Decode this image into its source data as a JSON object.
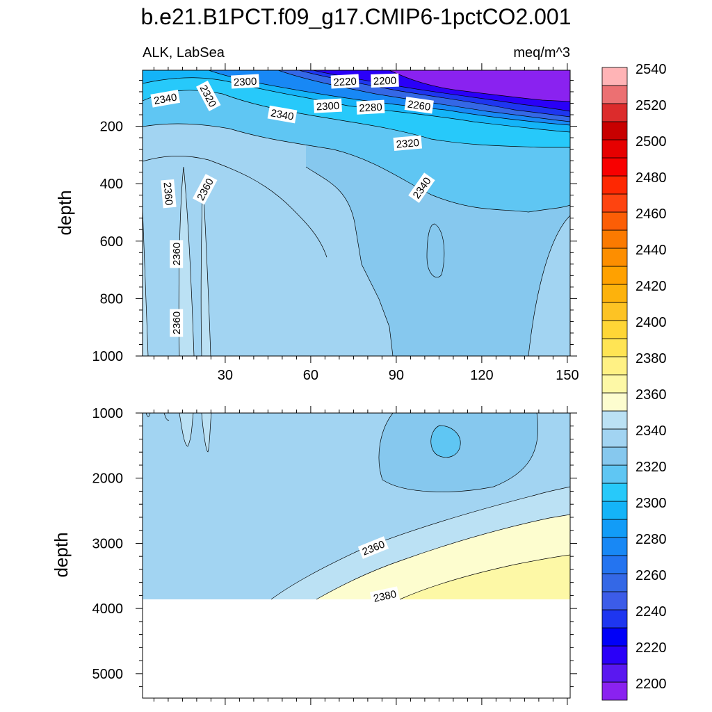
{
  "title": "b.e21.B1PCT.f09_g17.CMIP6-1pctCO2.001",
  "left_subtitle": "ALK, LabSea",
  "right_subtitle": "meq/m^3",
  "chart_data": [
    {
      "type": "heatmap",
      "panel": "upper",
      "variable": "ALK",
      "region": "LabSea",
      "units": "meq/m^3",
      "ylabel": "depth",
      "xlabel": "",
      "xlim": [
        1,
        151
      ],
      "ylim": [
        1000,
        5
      ],
      "y_reversed": true,
      "x_ticks": [
        "30",
        "60",
        "90",
        "120",
        "150"
      ],
      "y_ticks": [
        "200",
        "400",
        "600",
        "800",
        "1000"
      ],
      "contour_labels": [
        {
          "value": "2300",
          "x": 37,
          "y": 45
        },
        {
          "value": "2220",
          "x": 72,
          "y": 45
        },
        {
          "value": "2200",
          "x": 86,
          "y": 42
        },
        {
          "value": "2340",
          "x": 9,
          "y": 105
        },
        {
          "value": "2320",
          "x": 24,
          "y": 95
        },
        {
          "value": "2340",
          "x": 50,
          "y": 160
        },
        {
          "value": "2300",
          "x": 66,
          "y": 130
        },
        {
          "value": "2280",
          "x": 81,
          "y": 135
        },
        {
          "value": "2260",
          "x": 98,
          "y": 128
        },
        {
          "value": "2320",
          "x": 94,
          "y": 260
        },
        {
          "value": "2340",
          "x": 99,
          "y": 415
        },
        {
          "value": "2360",
          "x": 10,
          "y": 435
        },
        {
          "value": "2360",
          "x": 23,
          "y": 420
        },
        {
          "value": "2360",
          "x": 13,
          "y": 645
        },
        {
          "value": "2360",
          "x": 13,
          "y": 885
        }
      ],
      "grid": false
    },
    {
      "type": "heatmap",
      "panel": "lower",
      "ylabel": "depth",
      "xlabel": "",
      "xlim": [
        1,
        151
      ],
      "ylim": [
        5375,
        1000
      ],
      "y_reversed": true,
      "y_ticks": [
        "1000",
        "2000",
        "3000",
        "4000",
        "5000"
      ],
      "ocean_bottom_depth": 3875,
      "contour_labels": [
        {
          "value": "2360",
          "x": 82,
          "y": 3070
        },
        {
          "value": "2380",
          "x": 86,
          "y": 3810
        }
      ],
      "grid": false
    }
  ],
  "colorbar": {
    "labels": [
      "2200",
      "2220",
      "2240",
      "2260",
      "2280",
      "2300",
      "2320",
      "2340",
      "2360",
      "2380",
      "2400",
      "2420",
      "2440",
      "2460",
      "2480",
      "2500",
      "2520",
      "2540"
    ],
    "colors": [
      "#8a22f0",
      "#5a18f0",
      "#2a00f8",
      "#0000f8",
      "#1e36f0",
      "#3c5ce8",
      "#3468e6",
      "#2474f0",
      "#1888f5",
      "#129cf7",
      "#14b4f8",
      "#27c9fa",
      "#5fc6f3",
      "#86c8ee",
      "#a2d4f2",
      "#bbe1f4",
      "#fdfdcf",
      "#fdf8a6",
      "#fff184",
      "#ffe454",
      "#ffd636",
      "#fdc324",
      "#fdb20c",
      "#ffa100",
      "#fd8e00",
      "#fb7a00",
      "#fc5e06",
      "#fe4410",
      "#fe2802",
      "#f80000",
      "#e60000",
      "#c80000",
      "#dc2c2c",
      "#ec7072",
      "#ffb4b6"
    ]
  }
}
